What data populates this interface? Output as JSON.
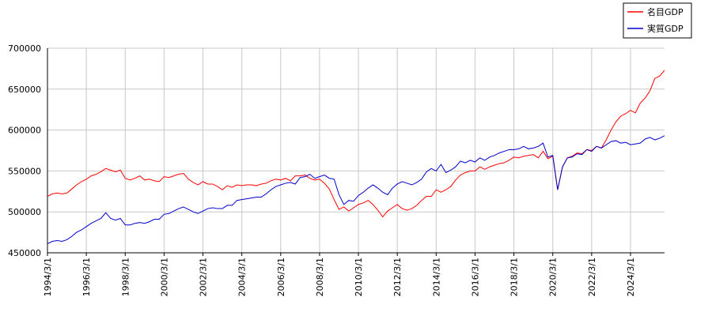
{
  "chart_data": {
    "type": "line",
    "x": [
      "1994/3/1",
      "1994/6/1",
      "1994/9/1",
      "1994/12/1",
      "1995/3/1",
      "1995/6/1",
      "1995/9/1",
      "1995/12/1",
      "1996/3/1",
      "1996/6/1",
      "1996/9/1",
      "1996/12/1",
      "1997/3/1",
      "1997/6/1",
      "1997/9/1",
      "1997/12/1",
      "1998/3/1",
      "1998/6/1",
      "1998/9/1",
      "1998/12/1",
      "1999/3/1",
      "1999/6/1",
      "1999/9/1",
      "1999/12/1",
      "2000/3/1",
      "2000/6/1",
      "2000/9/1",
      "2000/12/1",
      "2001/3/1",
      "2001/6/1",
      "2001/9/1",
      "2001/12/1",
      "2002/3/1",
      "2002/6/1",
      "2002/9/1",
      "2002/12/1",
      "2003/3/1",
      "2003/6/1",
      "2003/9/1",
      "2003/12/1",
      "2004/3/1",
      "2004/6/1",
      "2004/9/1",
      "2004/12/1",
      "2005/3/1",
      "2005/6/1",
      "2005/9/1",
      "2005/12/1",
      "2006/3/1",
      "2006/6/1",
      "2006/9/1",
      "2006/12/1",
      "2007/3/1",
      "2007/6/1",
      "2007/9/1",
      "2007/12/1",
      "2008/3/1",
      "2008/6/1",
      "2008/9/1",
      "2008/12/1",
      "2009/3/1",
      "2009/6/1",
      "2009/9/1",
      "2009/12/1",
      "2010/3/1",
      "2010/6/1",
      "2010/9/1",
      "2010/12/1",
      "2011/3/1",
      "2011/6/1",
      "2011/9/1",
      "2011/12/1",
      "2012/3/1",
      "2012/6/1",
      "2012/9/1",
      "2012/12/1",
      "2013/3/1",
      "2013/6/1",
      "2013/9/1",
      "2013/12/1",
      "2014/3/1",
      "2014/6/1",
      "2014/9/1",
      "2014/12/1",
      "2015/3/1",
      "2015/6/1",
      "2015/9/1",
      "2015/12/1",
      "2016/3/1",
      "2016/6/1",
      "2016/9/1",
      "2016/12/1",
      "2017/3/1",
      "2017/6/1",
      "2017/9/1",
      "2017/12/1",
      "2018/3/1",
      "2018/6/1",
      "2018/9/1",
      "2018/12/1",
      "2019/3/1",
      "2019/6/1",
      "2019/9/1",
      "2019/12/1",
      "2020/3/1",
      "2020/6/1",
      "2020/9/1",
      "2020/12/1",
      "2021/3/1",
      "2021/6/1",
      "2021/9/1",
      "2021/12/1",
      "2022/3/1",
      "2022/6/1",
      "2022/9/1",
      "2022/12/1",
      "2023/3/1",
      "2023/6/1",
      "2023/9/1",
      "2023/12/1",
      "2024/3/1",
      "2024/6/1",
      "2024/9/1",
      "2024/12/1",
      "2025/3/1",
      "2025/6/1",
      "2025/9/1",
      "2025/12/1"
    ],
    "xticks": [
      "1994/3/1",
      "1996/3/1",
      "1998/3/1",
      "2000/3/1",
      "2002/3/1",
      "2004/3/1",
      "2006/3/1",
      "2008/3/1",
      "2010/3/1",
      "2012/3/1",
      "2014/3/1",
      "2016/3/1",
      "2018/3/1",
      "2020/3/1",
      "2022/3/1",
      "2024/3/1"
    ],
    "ylim": [
      450000,
      700000
    ],
    "yticks": [
      450000,
      500000,
      550000,
      600000,
      650000,
      700000
    ],
    "grid": true,
    "legend": "top-right",
    "series": [
      {
        "name": "名目GDP",
        "color": "#ff0000",
        "values": [
          519000,
          522000,
          523000,
          522000,
          523000,
          528000,
          533000,
          537000,
          540000,
          544000,
          546000,
          549000,
          553000,
          551000,
          549000,
          551000,
          541000,
          539000,
          541000,
          544000,
          539000,
          540000,
          538000,
          537000,
          543000,
          542000,
          544000,
          546000,
          547000,
          540000,
          536000,
          533000,
          537000,
          534000,
          534000,
          531000,
          527000,
          532000,
          530000,
          533000,
          532000,
          533000,
          533000,
          532000,
          534000,
          535000,
          538000,
          540000,
          539000,
          541000,
          538000,
          544000,
          544000,
          545000,
          541000,
          539000,
          540000,
          535000,
          528000,
          515000,
          503000,
          506000,
          501000,
          505000,
          509000,
          511000,
          514000,
          509000,
          502000,
          494000,
          501000,
          505000,
          509000,
          504000,
          502000,
          504000,
          508000,
          514000,
          519000,
          519000,
          527000,
          524000,
          527000,
          531000,
          539000,
          545000,
          548000,
          550000,
          550000,
          555000,
          552000,
          555000,
          557000,
          559000,
          560000,
          563000,
          567000,
          566000,
          568000,
          569000,
          570000,
          566000,
          574000,
          565000,
          568000,
          527000,
          555000,
          566000,
          568000,
          572000,
          571000,
          576000,
          575000,
          580000,
          578000,
          588000,
          600000,
          610000,
          617000,
          620000,
          624000,
          621000,
          633000,
          639000,
          648000,
          663000,
          666000,
          673000
        ]
      },
      {
        "name": "実質GDP",
        "color": "#0000cc",
        "values": [
          461000,
          464000,
          465000,
          464000,
          466000,
          470000,
          475000,
          478000,
          482000,
          486000,
          489000,
          492000,
          499000,
          492000,
          490000,
          492000,
          484000,
          484000,
          486000,
          487000,
          486000,
          488000,
          491000,
          491000,
          497000,
          498000,
          501000,
          504000,
          506000,
          503000,
          500000,
          498000,
          501000,
          504000,
          505000,
          504000,
          504000,
          508000,
          508000,
          514000,
          515000,
          516000,
          517000,
          518000,
          518000,
          522000,
          527000,
          531000,
          533000,
          535000,
          536000,
          534000,
          542000,
          543000,
          546000,
          541000,
          543000,
          545000,
          541000,
          540000,
          521000,
          509000,
          514000,
          513000,
          520000,
          524000,
          529000,
          533000,
          529000,
          524000,
          521000,
          529000,
          534000,
          537000,
          535000,
          533000,
          536000,
          540000,
          549000,
          553000,
          550000,
          558000,
          548000,
          551000,
          555000,
          562000,
          560000,
          563000,
          561000,
          566000,
          563000,
          567000,
          569000,
          572000,
          574000,
          576000,
          576000,
          577000,
          580000,
          577000,
          578000,
          580000,
          584000,
          567000,
          569000,
          527000,
          555000,
          566000,
          567000,
          571000,
          570000,
          576000,
          574000,
          580000,
          578000,
          582000,
          586000,
          587000,
          584000,
          585000,
          582000,
          583000,
          584000,
          589000,
          591000,
          588000,
          590000,
          593000
        ]
      }
    ]
  }
}
